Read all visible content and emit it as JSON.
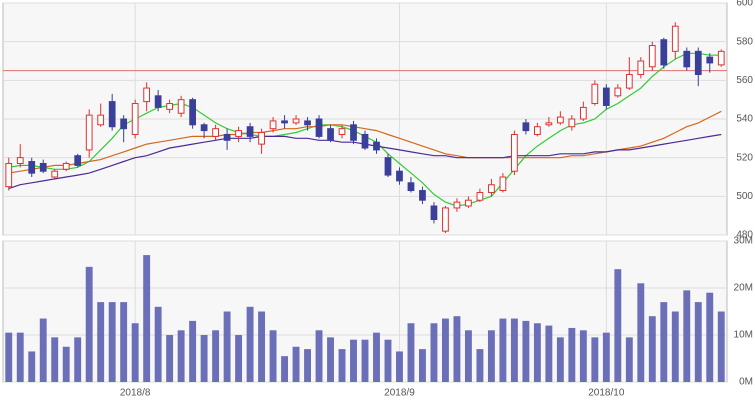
{
  "chart_data": {
    "type": "candlestick",
    "open": [
      505,
      517,
      518,
      517,
      510,
      514,
      521,
      524,
      537,
      549,
      540,
      532,
      549,
      552,
      545,
      543,
      550,
      537,
      531,
      532,
      531,
      536,
      527,
      535,
      539,
      538,
      539,
      540,
      535,
      532,
      537,
      532,
      528,
      520,
      513,
      507,
      503,
      495,
      482,
      494,
      495,
      498,
      502,
      503,
      513,
      538,
      532,
      537,
      538,
      536,
      540,
      548,
      556,
      552,
      556,
      563,
      567,
      581,
      575,
      575,
      575,
      572,
      568
    ],
    "high": [
      520,
      527,
      520,
      519,
      514,
      518,
      522,
      545,
      548,
      553,
      542,
      550,
      559,
      555,
      550,
      552,
      551,
      538,
      537,
      535,
      536,
      538,
      535,
      541,
      542,
      542,
      541,
      542,
      537,
      537,
      539,
      534,
      530,
      522,
      515,
      510,
      505,
      497,
      495,
      499,
      500,
      504,
      509,
      512,
      534,
      540,
      538,
      541,
      544,
      542,
      549,
      560,
      558,
      558,
      572,
      572,
      580,
      582,
      590,
      577,
      577,
      574,
      576
    ],
    "low": [
      503,
      515,
      510,
      512,
      509,
      513,
      515,
      520,
      536,
      534,
      528,
      530,
      544,
      544,
      543,
      541,
      535,
      530,
      529,
      524,
      528,
      528,
      522,
      533,
      535,
      537,
      534,
      530,
      528,
      530,
      527,
      524,
      522,
      510,
      506,
      502,
      496,
      486,
      481,
      492,
      494,
      497,
      500,
      502,
      511,
      532,
      531,
      536,
      537,
      534,
      539,
      547,
      545,
      551,
      555,
      561,
      565,
      566,
      571,
      565,
      557,
      564,
      567
    ],
    "close": [
      517,
      520,
      512,
      513,
      513,
      517,
      516,
      542,
      542,
      536,
      535,
      548,
      556,
      546,
      548,
      550,
      537,
      534,
      535,
      529,
      534,
      531,
      533,
      539,
      538,
      540,
      537,
      531,
      529,
      535,
      529,
      525,
      524,
      511,
      508,
      503,
      498,
      488,
      494,
      497,
      498,
      502,
      506,
      510,
      532,
      534,
      536,
      538,
      541,
      540,
      546,
      558,
      547,
      556,
      563,
      570,
      578,
      568,
      588,
      567,
      563,
      569,
      575
    ],
    "volume": [
      10.5,
      10.5,
      6.5,
      13.5,
      9.5,
      7.5,
      9.5,
      24.5,
      17,
      17,
      17,
      12.5,
      27,
      16,
      10,
      11,
      13,
      10,
      11,
      15,
      10,
      16,
      15,
      11,
      5.5,
      7.5,
      7,
      11,
      9.5,
      7,
      9,
      9,
      10.5,
      9,
      6.5,
      12.5,
      7,
      12.5,
      13.5,
      14,
      11,
      7,
      11,
      13.5,
      13.5,
      13,
      12.5,
      12,
      9.5,
      11.5,
      11,
      9.5,
      10.5,
      24,
      9.5,
      21,
      14,
      17,
      15,
      19.5,
      17,
      19,
      15
    ],
    "moving_averages": [
      {
        "color": "#33cc33",
        "values": [
          515,
          516,
          516,
          515,
          514,
          514,
          515,
          518,
          524,
          530,
          537,
          540,
          543,
          546,
          547,
          548,
          546,
          542,
          538,
          535,
          533,
          532,
          531,
          531,
          532,
          533,
          535,
          537,
          537,
          536,
          534,
          531,
          528,
          522,
          517,
          512,
          507,
          501,
          497,
          495,
          496,
          498,
          500,
          507,
          514,
          521,
          526,
          530,
          534,
          537,
          538,
          540,
          545,
          548,
          552,
          556,
          562,
          567,
          571,
          574,
          574,
          573,
          573
        ]
      },
      {
        "color": "#d2691e",
        "values": [
          512,
          513,
          514,
          515,
          516,
          516,
          517,
          518,
          519,
          521,
          523,
          525,
          527,
          528,
          529,
          530,
          531,
          531,
          531,
          532,
          532,
          533,
          533,
          534,
          535,
          535,
          536,
          536,
          537,
          537,
          536,
          535,
          534,
          532,
          530,
          528,
          526,
          524,
          522,
          521,
          520,
          520,
          520,
          520,
          520,
          520,
          520,
          520,
          520,
          521,
          521,
          522,
          523,
          524,
          525,
          526,
          528,
          530,
          533,
          536,
          538,
          541,
          544
        ]
      },
      {
        "color": "#4b2a99",
        "values": [
          504,
          506,
          507,
          508,
          509,
          510,
          511,
          512,
          514,
          516,
          518,
          520,
          521,
          523,
          525,
          526,
          527,
          528,
          529,
          530,
          530,
          530,
          531,
          531,
          531,
          530,
          530,
          529,
          529,
          528,
          528,
          527,
          526,
          525,
          524,
          523,
          522,
          521,
          521,
          520,
          520,
          520,
          520,
          520,
          521,
          521,
          521,
          521,
          522,
          522,
          522,
          523,
          523,
          524,
          524,
          525,
          526,
          527,
          528,
          529,
          530,
          531,
          532
        ]
      }
    ],
    "reference_line": 565,
    "up_color": "#e03030",
    "down_color": "#3a3f9a",
    "volume_color": "#6b6fb8",
    "ylim": [
      480,
      600
    ],
    "yticks": [
      480,
      500,
      520,
      540,
      560,
      580,
      600
    ],
    "y2lim": [
      0,
      30
    ],
    "y2ticks": [
      {
        "value": 0,
        "label": "0M"
      },
      {
        "value": 10,
        "label": "10M"
      },
      {
        "value": 20,
        "label": "20M"
      },
      {
        "value": 30,
        "label": "30M"
      }
    ],
    "xticks": [
      {
        "value": 11,
        "label": "2018/8"
      },
      {
        "value": 34,
        "label": "2018/9"
      },
      {
        "value": 52,
        "label": "2018/10"
      }
    ],
    "grid": true
  }
}
